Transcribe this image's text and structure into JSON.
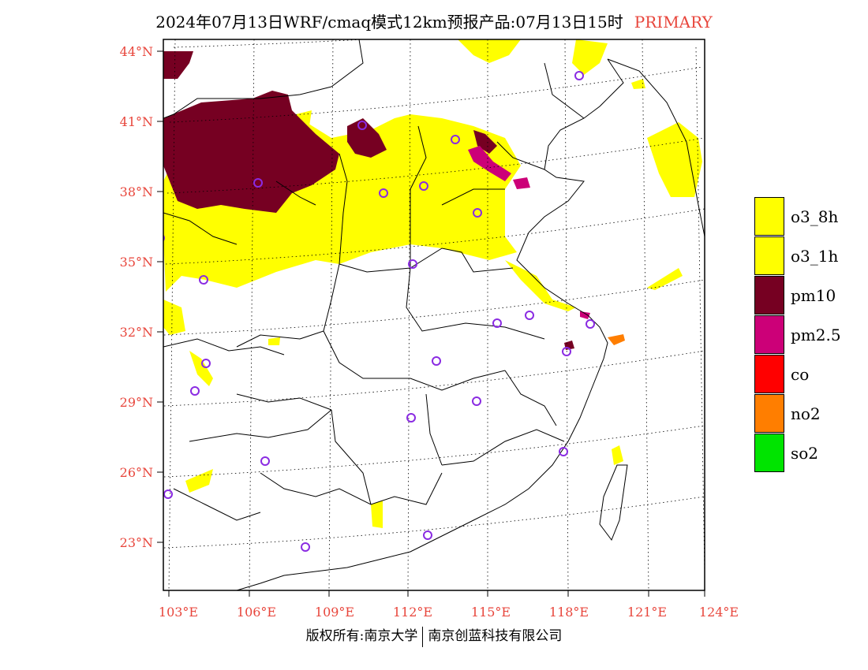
{
  "header": {
    "title": "2024年07月13日WRF/cmaq模式12km预报产品:07月13日15时",
    "tag": "PRIMARY"
  },
  "map": {
    "lat_labels": [
      "44°N",
      "41°N",
      "38°N",
      "35°N",
      "32°N",
      "29°N",
      "26°N",
      "23°N"
    ],
    "lon_labels": [
      "103°E",
      "106°E",
      "109°E",
      "112°E",
      "115°E",
      "118°E",
      "121°E",
      "124°E"
    ],
    "colors": {
      "o3_8h": "#ffff00",
      "o3_1h": "#ffff00",
      "pm10": "#760022",
      "pm2_5": "#cc0078",
      "co": "#ff0000",
      "no2": "#ff7e00",
      "so2": "#00e400",
      "station_marker": "#8a2be2",
      "label": "#e8463c"
    }
  },
  "legend": {
    "items": [
      {
        "label": "o3_8h",
        "color": "#ffff00"
      },
      {
        "label": "o3_1h",
        "color": "#ffff00"
      },
      {
        "label": "pm10",
        "color": "#760022"
      },
      {
        "label": "pm2.5",
        "color": "#cc0078"
      },
      {
        "label": "co",
        "color": "#ff0000"
      },
      {
        "label": "no2",
        "color": "#ff7e00"
      },
      {
        "label": "so2",
        "color": "#00e400"
      }
    ]
  },
  "footer": {
    "left": "版权所有:南京大学",
    "right": "南京创蓝科技有限公司"
  }
}
